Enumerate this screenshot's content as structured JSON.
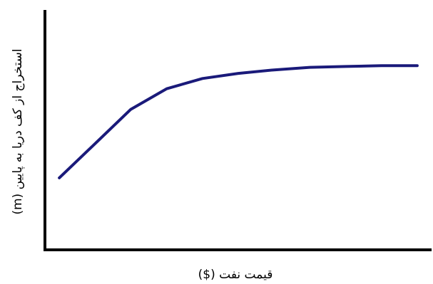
{
  "chart_data": {
    "type": "line",
    "xlabel": "قیمت نفت ($)",
    "ylabel": "استخراج از کف دریا به پایین (m)",
    "x": [
      1,
      2,
      3,
      4,
      5,
      6,
      7,
      8,
      9,
      10,
      11
    ],
    "series": [
      {
        "values": [
          0.42,
          0.62,
          0.82,
          0.94,
          1.0,
          1.03,
          1.05,
          1.065,
          1.07,
          1.075,
          1.075
        ]
      }
    ],
    "xlim": [
      0.6,
      11.4
    ],
    "ylim": [
      0,
      1.4
    ],
    "grid": false,
    "ticks": false,
    "line_color": "#1a1a7a",
    "axis_color": "#000000"
  }
}
